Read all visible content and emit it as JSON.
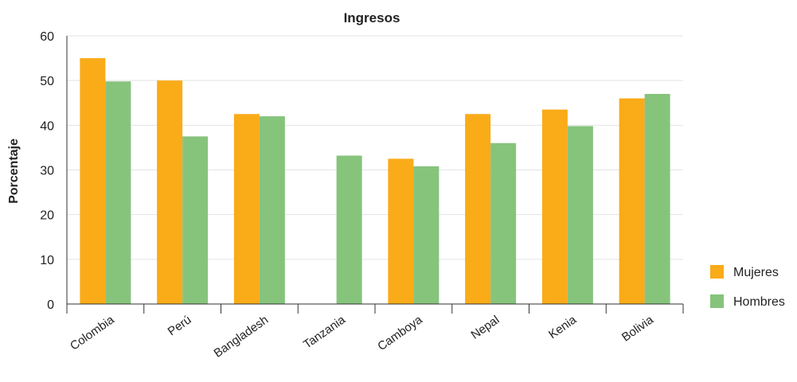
{
  "chart_data": {
    "type": "bar",
    "title": "Ingresos",
    "xlabel": "",
    "ylabel": "Porcentaje",
    "ylim": [
      0,
      60
    ],
    "yticks": [
      0,
      10,
      20,
      30,
      40,
      50,
      60
    ],
    "grid": true,
    "legend_position": "right-bottom",
    "categories": [
      "Colombia",
      "Perú",
      "Bangladesh",
      "Tanzania",
      "Camboya",
      "Nepal",
      "Kenia",
      "Bolivia"
    ],
    "series": [
      {
        "name": "Mujeres",
        "color": "#FAAB18",
        "values": [
          55,
          50,
          42.5,
          null,
          32.5,
          42.5,
          43.5,
          46
        ]
      },
      {
        "name": "Hombres",
        "color": "#86C47C",
        "values": [
          49.8,
          37.5,
          42,
          33.2,
          30.8,
          36,
          39.8,
          47
        ]
      }
    ]
  }
}
